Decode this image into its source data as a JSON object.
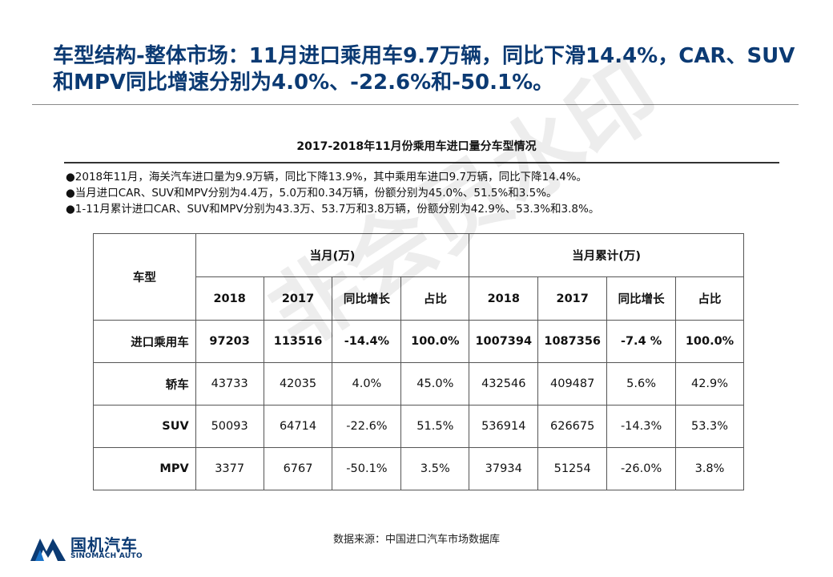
{
  "title_line1": "车型结构-整体市场：11月进口乘用车9.7万辆，同比下滑14.4%，CAR、SUV",
  "title_line2": "和MPV同比增速分别为4.0%、-22.6%和-50.1%。",
  "chart_title": "2017-2018年11月份乘用车进口量分车型情况",
  "bullets": [
    "●2018年11月，海关汽车进口量为9.9万辆，同比下降13.9%，其中乘用车进口9.7万辆，同比下降14.4%。",
    "●当月进口CAR、SUV和MPV分别为4.4万，5.0万和0.34万辆，份额分别为45.0%、51.5%和3.5%。",
    "●1-11月累计进口CAR、SUV和MPV分别为43.3万、53.7万和3.8万辆，份额分别为42.9%、53.3%和3.8%。"
  ],
  "table": {
    "corner_label": "车型",
    "group_monthly": "当月(万)",
    "group_cumulative": "当月累计(万)",
    "col_2018": "2018",
    "col_2017": "2017",
    "col_yoy": "同比增长",
    "col_share": "占比",
    "rows": [
      {
        "label": "进口乘用车",
        "m2018": "97203",
        "m2017": "113516",
        "myoy": "-14.4%",
        "mshare": "100.0%",
        "c2018": "1007394",
        "c2017": "1087356",
        "cyoy": "-7.4 %",
        "cshare": "100.0%"
      },
      {
        "label": "轿车",
        "m2018": "43733",
        "m2017": "42035",
        "myoy": "4.0%",
        "mshare": "45.0%",
        "c2018": "432546",
        "c2017": "409487",
        "cyoy": "5.6%",
        "cshare": "42.9%"
      },
      {
        "label": "SUV",
        "m2018": "50093",
        "m2017": "64714",
        "myoy": "-22.6%",
        "mshare": "51.5%",
        "c2018": "536914",
        "c2017": "626675",
        "cyoy": "-14.3%",
        "cshare": "53.3%"
      },
      {
        "label": "MPV",
        "m2018": "3377",
        "m2017": "6767",
        "myoy": "-50.1%",
        "mshare": "3.5%",
        "c2018": "37934",
        "c2017": "51254",
        "cyoy": "-26.0%",
        "cshare": "3.8%"
      }
    ]
  },
  "watermark": "非会员水印",
  "source": "数据来源：中国进口汽车市场数据库",
  "logo": {
    "name_cn": "国机汽车",
    "name_en": "SINOMACH AUTO",
    "color": "#0b3a73"
  }
}
